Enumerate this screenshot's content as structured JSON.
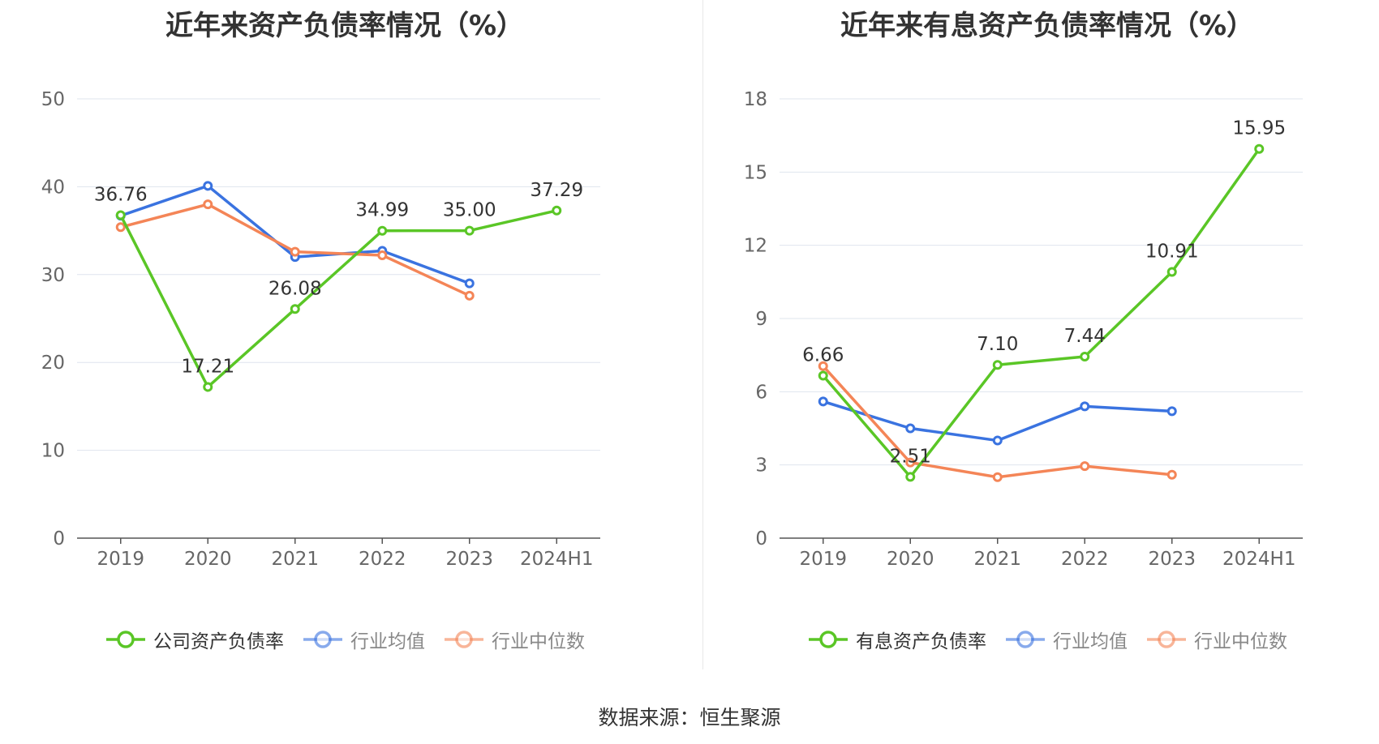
{
  "source_text": "数据来源：恒生聚源",
  "chart_data": [
    {
      "type": "line",
      "title": "近年来资产负债率情况（%）",
      "categories": [
        "2019",
        "2020",
        "2021",
        "2022",
        "2023",
        "2024H1"
      ],
      "ylim": [
        0,
        50
      ],
      "yticks": [
        0,
        10,
        20,
        30,
        40,
        50
      ],
      "grid": true,
      "legend_position": "bottom",
      "series": [
        {
          "name": "公司资产负债率",
          "color": "#5ac626",
          "values": [
            36.76,
            17.21,
            26.08,
            34.99,
            35.0,
            37.29
          ],
          "labels": [
            "36.76",
            "17.21",
            "26.08",
            "34.99",
            "35.00",
            "37.29"
          ]
        },
        {
          "name": "行业均值",
          "color": "#3a73e0",
          "values": [
            36.7,
            40.1,
            32.0,
            32.7,
            29.0,
            null
          ]
        },
        {
          "name": "行业中位数",
          "color": "#f48557",
          "values": [
            35.4,
            38.0,
            32.6,
            32.2,
            27.6,
            null
          ]
        }
      ]
    },
    {
      "type": "line",
      "title": "近年来有息资产负债率情况（%）",
      "categories": [
        "2019",
        "2020",
        "2021",
        "2022",
        "2023",
        "2024H1"
      ],
      "ylim": [
        0,
        18
      ],
      "yticks": [
        0,
        3,
        6,
        9,
        12,
        15,
        18
      ],
      "grid": true,
      "legend_position": "bottom",
      "series": [
        {
          "name": "有息资产负债率",
          "color": "#5ac626",
          "values": [
            6.66,
            2.51,
            7.1,
            7.44,
            10.91,
            15.95
          ],
          "labels": [
            "6.66",
            "2.51",
            "7.10",
            "7.44",
            "10.91",
            "15.95"
          ]
        },
        {
          "name": "行业均值",
          "color": "#3a73e0",
          "values": [
            5.6,
            4.5,
            4.0,
            5.4,
            5.2,
            null
          ]
        },
        {
          "name": "行业中位数",
          "color": "#f48557",
          "values": [
            7.05,
            3.1,
            2.5,
            2.95,
            2.6,
            null
          ]
        }
      ]
    }
  ]
}
